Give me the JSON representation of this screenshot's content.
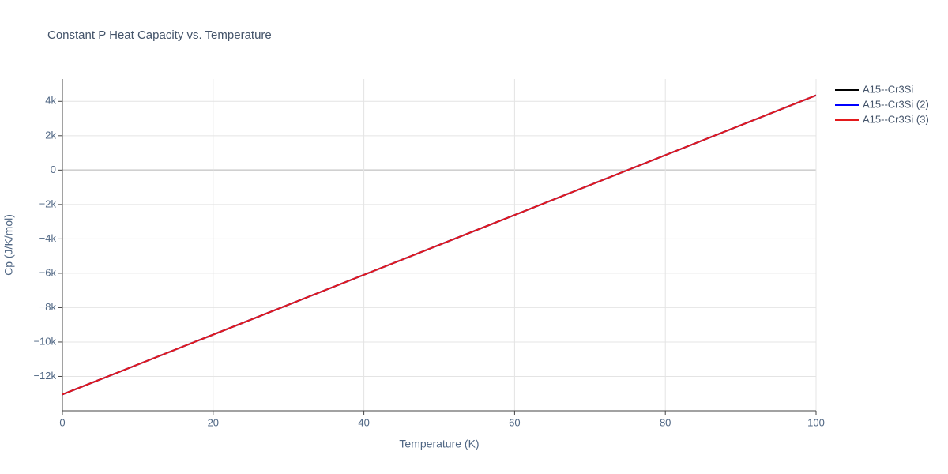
{
  "chart_data": {
    "type": "line",
    "title": "Constant P Heat Capacity vs. Temperature",
    "x_label": "Temperature (K)",
    "y_label": "Cp (J/K/mol)",
    "x": [
      0,
      100
    ],
    "series": [
      {
        "name": "A15--Cr3Si",
        "color": "#000000",
        "values": [
          -13050,
          4350
        ]
      },
      {
        "name": "A15--Cr3Si (2)",
        "color": "#0000ff",
        "values": [
          -13050,
          4350
        ]
      },
      {
        "name": "A15--Cr3Si (3)",
        "color": "#e31a1c",
        "values": [
          -13050,
          4350
        ]
      }
    ],
    "xlim": [
      0,
      100
    ],
    "xticks": [
      0,
      20,
      40,
      60,
      80,
      100
    ],
    "ylim": [
      -14000,
      5300
    ],
    "yticks": [
      {
        "value": -12000,
        "label": "−12k"
      },
      {
        "value": -10000,
        "label": "−10k"
      },
      {
        "value": -8000,
        "label": "−8k"
      },
      {
        "value": -6000,
        "label": "−6k"
      },
      {
        "value": -4000,
        "label": "−4k"
      },
      {
        "value": -2000,
        "label": "−2k"
      },
      0,
      {
        "value": 2000,
        "label": "2k"
      },
      {
        "value": 4000,
        "label": "4k"
      }
    ],
    "grid": true,
    "legend": "right"
  }
}
